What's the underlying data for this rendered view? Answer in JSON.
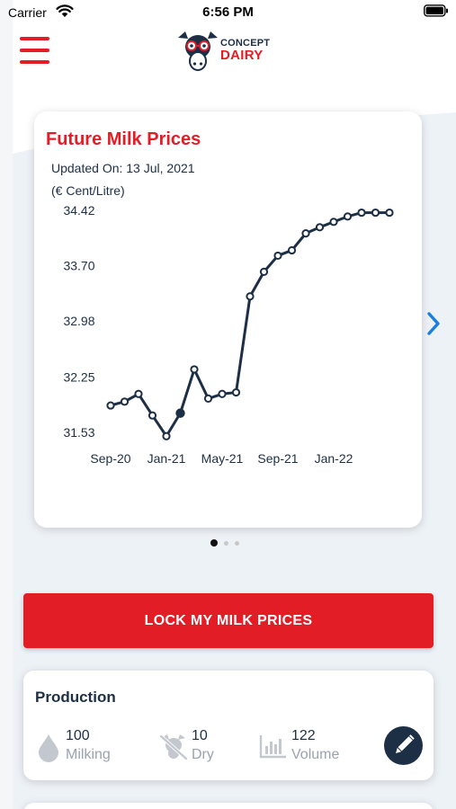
{
  "status_bar": {
    "carrier": "Carrier",
    "time": "6:56 PM"
  },
  "header": {
    "menu_icon": "hamburger-menu-icon",
    "logo": {
      "line1": "CONCEPT",
      "line2": "DAIRY"
    }
  },
  "colors": {
    "brand_red": "#e21d25",
    "navy": "#1d2f45",
    "accent_blue": "#1b7fe0"
  },
  "chart_card": {
    "title": "Future Milk Prices",
    "updated": "Updated On: 13 Jul, 2021",
    "unit": "(€ Cent/Litre)"
  },
  "chart_data": {
    "type": "line",
    "title": "Future Milk Prices",
    "ylabel": "(€ Cent/Litre)",
    "x": [
      "Sep-20",
      "Oct-20",
      "Nov-20",
      "Dec-20",
      "Jan-21",
      "Feb-21",
      "Mar-21",
      "Apr-21",
      "May-21",
      "Jun-21",
      "Jul-21",
      "Aug-21",
      "Sep-21",
      "Oct-21",
      "Nov-21",
      "Dec-21",
      "Jan-22",
      "Feb-22",
      "Mar-22",
      "Apr-22",
      "May-22"
    ],
    "series": [
      {
        "values": [
          31.88,
          31.93,
          32.03,
          31.75,
          31.48,
          31.78,
          32.35,
          31.97,
          32.03,
          32.05,
          33.3,
          33.62,
          33.83,
          33.9,
          34.12,
          34.2,
          34.27,
          34.34,
          34.39,
          34.39,
          34.39
        ]
      }
    ],
    "highlight_index": 5,
    "yticks": [
      "34.42",
      "33.70",
      "32.98",
      "32.25",
      "31.53"
    ],
    "xticks": [
      "Sep-20",
      "Jan-21",
      "May-21",
      "Sep-21",
      "Jan-22"
    ],
    "ylim": [
      31.53,
      34.42
    ],
    "grid": false,
    "legend": "none"
  },
  "pager": {
    "count": 3,
    "active": 0
  },
  "lock_button": {
    "label": "LOCK MY MILK PRICES"
  },
  "production": {
    "title": "Production",
    "stats": [
      {
        "value": "100",
        "label": "Milking",
        "icon": "milk-drop-icon"
      },
      {
        "value": "10",
        "label": "Dry",
        "icon": "dry-cow-icon"
      },
      {
        "value": "122",
        "label": "Volume",
        "icon": "volume-bars-icon"
      }
    ],
    "edit_icon": "pencil-icon"
  }
}
